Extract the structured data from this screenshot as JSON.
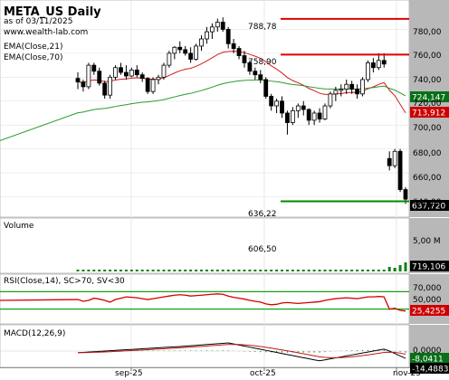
{
  "header": {
    "title": "META_US Daily",
    "asof": "as of 03/11/2025",
    "site": "www.wealth-lab.com",
    "ema21_label": "EMA(Close,21)",
    "ema70_label": "EMA(Close,70)"
  },
  "colors": {
    "price_bg": "#ffffff",
    "axis_bg": "#b8b8b8",
    "grid": "#e2e2e2",
    "ema21": "#d41c1c",
    "ema70": "#2a9a2a",
    "level_red": "#e00000",
    "level_green": "#008800",
    "candle": "#000000",
    "volume": "#108010",
    "rsi_band": "#17a017",
    "rsi_line": "#d40000",
    "macd_line": "#000000",
    "macd_signal": "#c01818",
    "macd_hist": "#1a8a1a",
    "tag_dark_green": "#087018",
    "tag_red": "#cc0000",
    "tag_black": "#000000",
    "text": "#000000"
  },
  "price_panel": {
    "levels": [
      {
        "label": "788,78",
        "value": 788.78,
        "color": "level_red"
      },
      {
        "label": "758,90",
        "value": 758.9,
        "color": "level_red"
      },
      {
        "label": "636,22",
        "value": 636.22,
        "color": "level_green"
      }
    ],
    "axis_ticks": [
      "780,00",
      "760,00",
      "740,00",
      "720,00",
      "700,00",
      "680,00",
      "660,00",
      "640,00"
    ],
    "last_tags": {
      "ema70": "724,147",
      "ema21": "713,912",
      "close": "637,720"
    }
  },
  "volume_panel": {
    "title": "Volume",
    "peak_label": "606,50",
    "axis_ticks": [
      "5,00 M"
    ],
    "last_tag": "719,106"
  },
  "rsi_panel": {
    "title": "RSI(Close,14), SC>70, SV<30",
    "axis_ticks": [
      "70,000",
      "50,000"
    ],
    "last_tag": "25,4255"
  },
  "macd_panel": {
    "title": "MACD(12,26,9)",
    "axis_ticks": [
      "0,0000"
    ],
    "last_tags": [
      "-8,0411",
      "-14,4883"
    ]
  },
  "xaxis": {
    "labels": [
      "sep-25",
      "oct-25",
      "nov-25"
    ]
  },
  "chart_data": {
    "type": "candlestick",
    "symbol": "META_US",
    "ylim": [
      626,
      800
    ],
    "candles": [
      [
        739,
        744,
        730,
        736
      ],
      [
        736,
        738,
        728,
        732
      ],
      [
        732,
        752,
        730,
        750
      ],
      [
        750,
        752,
        742,
        745
      ],
      [
        745,
        748,
        733,
        735
      ],
      [
        735,
        737,
        722,
        725
      ],
      [
        725,
        742,
        722,
        740
      ],
      [
        740,
        750,
        738,
        748
      ],
      [
        748,
        752,
        742,
        744
      ],
      [
        744,
        750,
        738,
        741
      ],
      [
        741,
        748,
        740,
        746
      ],
      [
        746,
        750,
        740,
        742
      ],
      [
        742,
        744,
        736,
        739
      ],
      [
        739,
        740,
        726,
        728
      ],
      [
        728,
        740,
        726,
        738
      ],
      [
        738,
        742,
        734,
        740
      ],
      [
        740,
        752,
        738,
        750
      ],
      [
        750,
        762,
        748,
        760
      ],
      [
        760,
        766,
        755,
        765
      ],
      [
        765,
        770,
        760,
        763
      ],
      [
        763,
        766,
        758,
        760
      ],
      [
        760,
        765,
        752,
        755
      ],
      [
        755,
        768,
        754,
        766
      ],
      [
        766,
        775,
        762,
        772
      ],
      [
        772,
        782,
        768,
        778
      ],
      [
        778,
        785,
        772,
        782
      ],
      [
        782,
        789,
        778,
        786
      ],
      [
        786,
        790,
        778,
        780
      ],
      [
        780,
        782,
        764,
        768
      ],
      [
        768,
        772,
        760,
        764
      ],
      [
        764,
        766,
        755,
        758
      ],
      [
        758,
        762,
        748,
        752
      ],
      [
        752,
        754,
        742,
        745
      ],
      [
        745,
        748,
        738,
        742
      ],
      [
        742,
        746,
        735,
        738
      ],
      [
        738,
        740,
        722,
        724
      ],
      [
        724,
        726,
        712,
        716
      ],
      [
        716,
        722,
        710,
        720
      ],
      [
        720,
        724,
        706,
        710
      ],
      [
        710,
        712,
        692,
        702
      ],
      [
        702,
        715,
        700,
        712
      ],
      [
        712,
        718,
        706,
        716
      ],
      [
        716,
        720,
        708,
        713
      ],
      [
        713,
        714,
        700,
        704
      ],
      [
        704,
        712,
        700,
        710
      ],
      [
        710,
        714,
        702,
        705
      ],
      [
        705,
        718,
        704,
        716
      ],
      [
        716,
        728,
        714,
        726
      ],
      [
        726,
        732,
        720,
        729
      ],
      [
        729,
        734,
        724,
        730
      ],
      [
        730,
        738,
        726,
        734
      ],
      [
        734,
        737,
        726,
        730
      ],
      [
        730,
        734,
        722,
        726
      ],
      [
        726,
        740,
        724,
        738
      ],
      [
        738,
        754,
        736,
        752
      ],
      [
        752,
        756,
        744,
        748
      ],
      [
        748,
        760,
        746,
        754
      ],
      [
        754,
        760,
        748,
        751
      ],
      [
        672,
        678,
        662,
        666
      ],
      [
        666,
        680,
        664,
        678
      ],
      [
        678,
        680,
        644,
        646
      ],
      [
        646,
        648,
        634,
        638
      ]
    ],
    "volume_peak": 606.5,
    "rsi_last": 25.4255,
    "macd_last": -8.0411,
    "signal_last": -14.4883
  }
}
